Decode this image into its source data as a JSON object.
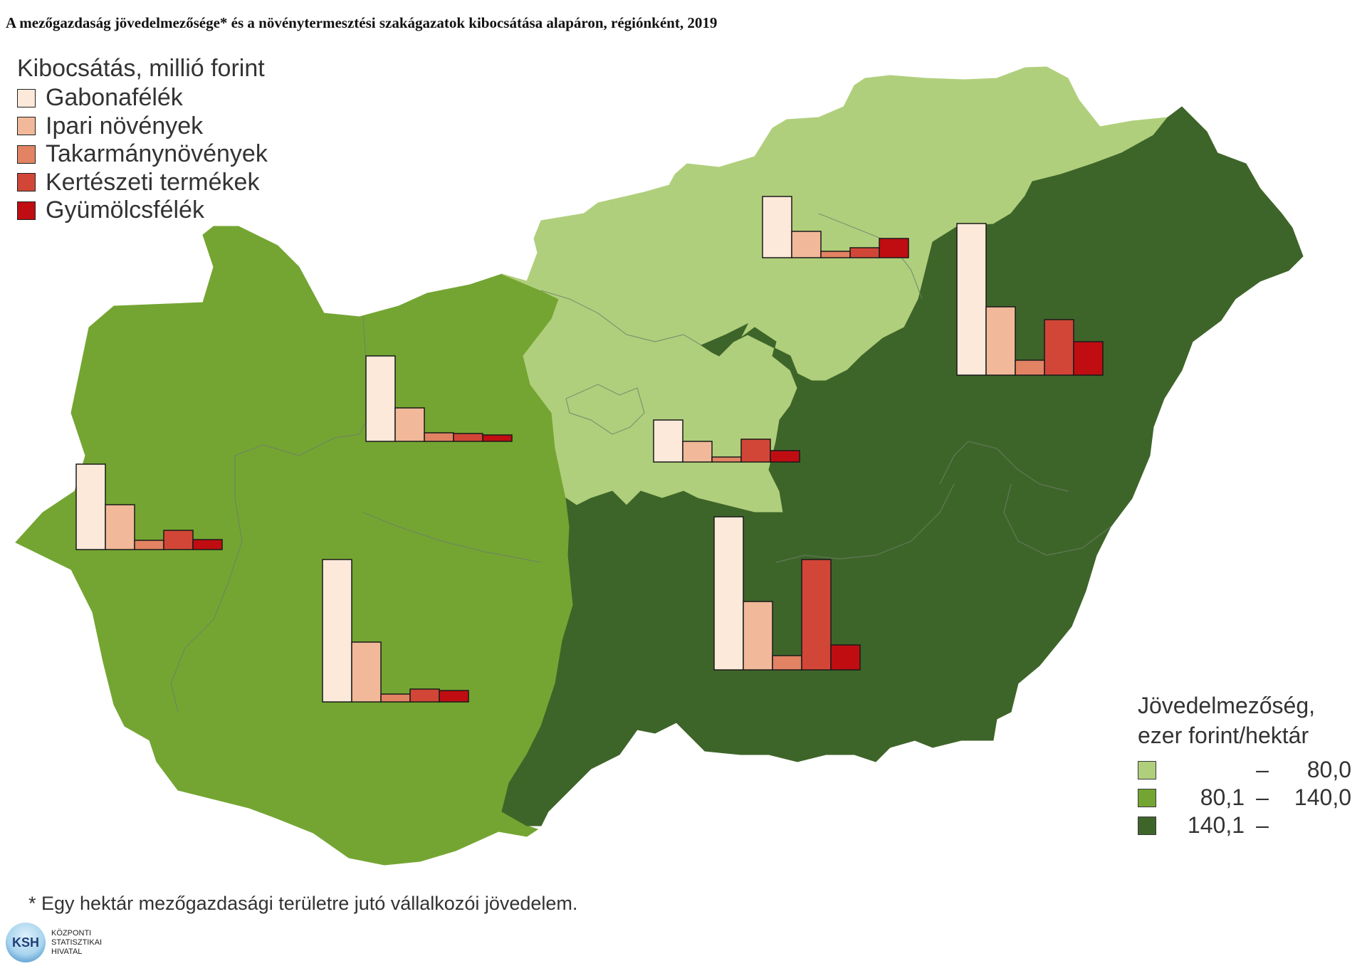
{
  "title": "A mezőgazdaság jövedelmezősége* és a növénytermesztési szakágazatok kibocsátása alapáron, régiónként, 2019",
  "bar_legend": {
    "heading": "Kibocsátás, millió forint",
    "items": [
      {
        "label": "Gabonafélék",
        "color": "#fde9da"
      },
      {
        "label": "Ipari növények",
        "color": "#f1b999"
      },
      {
        "label": "Takarmánynövények",
        "color": "#e28363"
      },
      {
        "label": "Kertészeti termékek",
        "color": "#d24637"
      },
      {
        "label": "Gyümölcsfélék",
        "color": "#c00d12"
      }
    ]
  },
  "profit_legend": {
    "heading_line1": "Jövedelmezőség,",
    "heading_line2": "ezer forint/hektár",
    "classes": [
      {
        "from": "",
        "dash": "–",
        "to": "80,0",
        "color": "#b0cf7c"
      },
      {
        "from": "80,1",
        "dash": "–",
        "to": "140,0",
        "color": "#74a532"
      },
      {
        "from": "140,1",
        "dash": "–",
        "to": "",
        "color": "#3e6529"
      }
    ]
  },
  "footnote": "* Egy hektár mezőgazdasági területre jutó vállalkozói jövedelem.",
  "logo": {
    "abbr": "KSH",
    "line1": "KÖZPONTI",
    "line2": "STATISZTIKAI",
    "line3": "HIVATAL"
  },
  "chart_data": {
    "type": "bar",
    "categories": [
      "Gabonafélék",
      "Ipari növények",
      "Takarmánynövények",
      "Kertészeti termékek",
      "Gyümölcsfélék"
    ],
    "regions": [
      {
        "id": "nyugat-dunantul",
        "class": 1,
        "values": [
          120,
          63,
          13,
          27,
          14
        ]
      },
      {
        "id": "kozep-dunantul",
        "class": 1,
        "values": [
          120,
          47,
          12,
          11,
          9
        ]
      },
      {
        "id": "del-dunantul",
        "class": 1,
        "values": [
          200,
          84,
          11,
          18,
          16
        ]
      },
      {
        "id": "pest",
        "class": 0,
        "values": [
          59,
          29,
          7,
          32,
          16
        ]
      },
      {
        "id": "eszak-magyarorszag",
        "class": 0,
        "values": [
          86,
          37,
          9,
          14,
          27
        ]
      },
      {
        "id": "eszak-alfold",
        "class": 2,
        "values": [
          213,
          96,
          21,
          78,
          47
        ]
      },
      {
        "id": "del-alfold",
        "class": 2,
        "values": [
          215,
          96,
          20,
          155,
          35
        ]
      }
    ]
  }
}
